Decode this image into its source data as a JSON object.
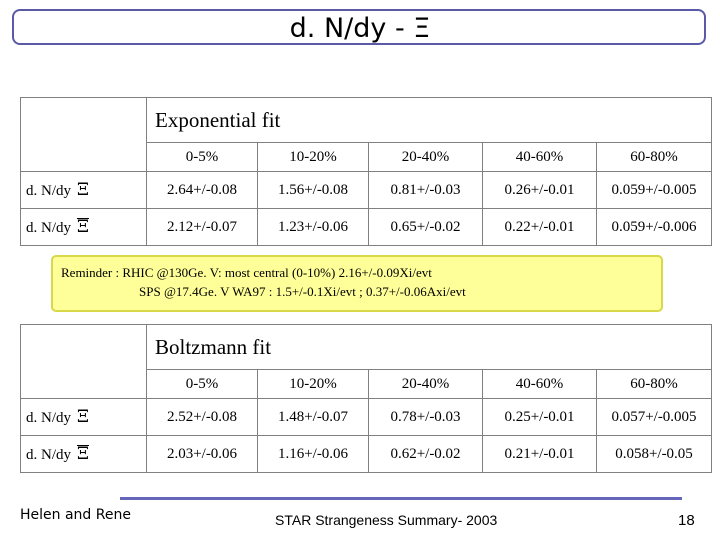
{
  "title": "d. N/dy - Ξ",
  "tables": [
    {
      "method": "Exponential fit",
      "headers": [
        "0-5%",
        "10-20%",
        "20-40%",
        "40-60%",
        "60-80%"
      ],
      "rows": [
        {
          "label": "d. N/dy",
          "symbol": "Ξ",
          "values": [
            "2.64+/-0.08",
            "1.56+/-0.08",
            "0.81+/-0.03",
            "0.26+/-0.01",
            "0.059+/-0.005"
          ]
        },
        {
          "label": "d. N/dy",
          "symbol": "Ξ",
          "values": [
            "2.12+/-0.07",
            "1.23+/-0.06",
            "0.65+/-0.02",
            "0.22+/-0.01",
            "0.059+/-0.006"
          ]
        }
      ]
    },
    {
      "method": "Boltzmann fit",
      "headers": [
        "0-5%",
        "10-20%",
        "20-40%",
        "40-60%",
        "60-80%"
      ],
      "rows": [
        {
          "label": "d. N/dy",
          "symbol": "Ξ",
          "values": [
            "2.52+/-0.08",
            "1.48+/-0.07",
            "0.78+/-0.03",
            "0.25+/-0.01",
            "0.057+/-0.005"
          ]
        },
        {
          "label": "d. N/dy",
          "symbol": "Ξ",
          "values": [
            "2.03+/-0.06",
            "1.16+/-0.06",
            "0.62+/-0.02",
            "0.21+/-0.01",
            "0.058+/-0.05"
          ]
        }
      ]
    }
  ],
  "reminder": {
    "line1": "Reminder : RHIC @130Ge. V: most central (0-10%) 2.16+/-0.09Xi/evt",
    "line2": "SPS @17.4Ge. V WA97 : 1.5+/-0.1Xi/evt ; 0.37+/-0.06Axi/evt"
  },
  "footer": {
    "left": "Helen and Rene",
    "center": "STAR Strangeness Summary- 2003",
    "page": "18"
  },
  "colors": {
    "title_border": "#5a5aa8",
    "reminder_bg": "#ffff99",
    "footer_line": "#6666bb"
  }
}
